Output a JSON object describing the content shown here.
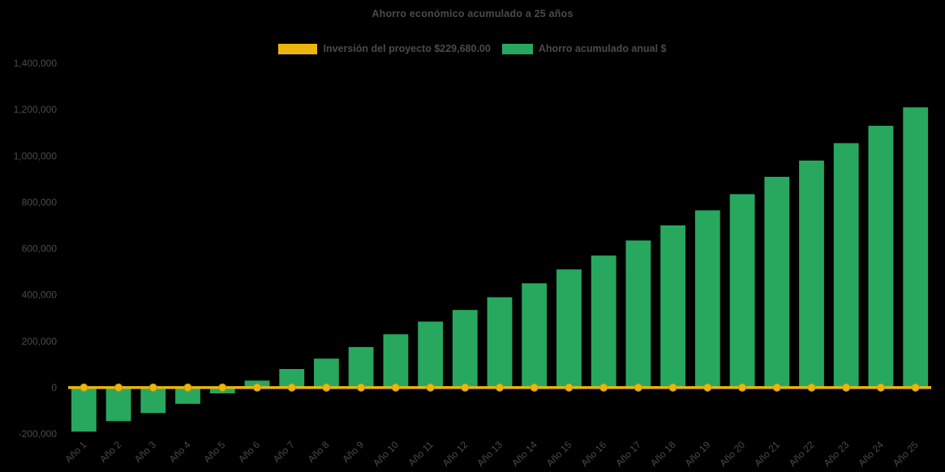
{
  "title": "Ahorro económico acumulado a 25 años",
  "legend": {
    "investment_label": "Inversión del proyecto $229,680.00",
    "savings_label": "Ahorro acumulado anual $"
  },
  "colors": {
    "background": "#000000",
    "text": "#4a4a4a",
    "bar": "#28A75E",
    "line": "#EDB50C",
    "line_marker_stroke": "#C89E0B"
  },
  "chart_data": {
    "type": "bar",
    "title": "Ahorro económico acumulado a 25 años",
    "xlabel": "",
    "ylabel": "",
    "ylim": [
      -200000,
      1400000
    ],
    "ytick_step": 200000,
    "grid": false,
    "legend_position": "top",
    "categories": [
      "Año 1",
      "Año 2",
      "Año 3",
      "Año 4",
      "Año 5",
      "Año 6",
      "Año 7",
      "Año 8",
      "Año 9",
      "Año 10",
      "Año 11",
      "Año 12",
      "Año 13",
      "Año 14",
      "Año 15",
      "Año 16",
      "Año 17",
      "Año 18",
      "Año 19",
      "Año 20",
      "Año 21",
      "Año 22",
      "Año 23",
      "Año 24",
      "Año 25"
    ],
    "series": [
      {
        "name": "Ahorro acumulado anual $",
        "type": "bar",
        "color": "#28A75E",
        "values": [
          -190000,
          -145000,
          -110000,
          -70000,
          -25000,
          30000,
          80000,
          125000,
          175000,
          230000,
          285000,
          335000,
          390000,
          450000,
          510000,
          570000,
          635000,
          700000,
          765000,
          835000,
          910000,
          980000,
          1055000,
          1130000,
          1210000
        ]
      },
      {
        "name": "Inversión del proyecto $229,680.00",
        "type": "line",
        "color": "#EDB50C",
        "investment_amount": 229680,
        "plotted_value": 0,
        "values": [
          0,
          0,
          0,
          0,
          0,
          0,
          0,
          0,
          0,
          0,
          0,
          0,
          0,
          0,
          0,
          0,
          0,
          0,
          0,
          0,
          0,
          0,
          0,
          0,
          0
        ]
      }
    ]
  }
}
